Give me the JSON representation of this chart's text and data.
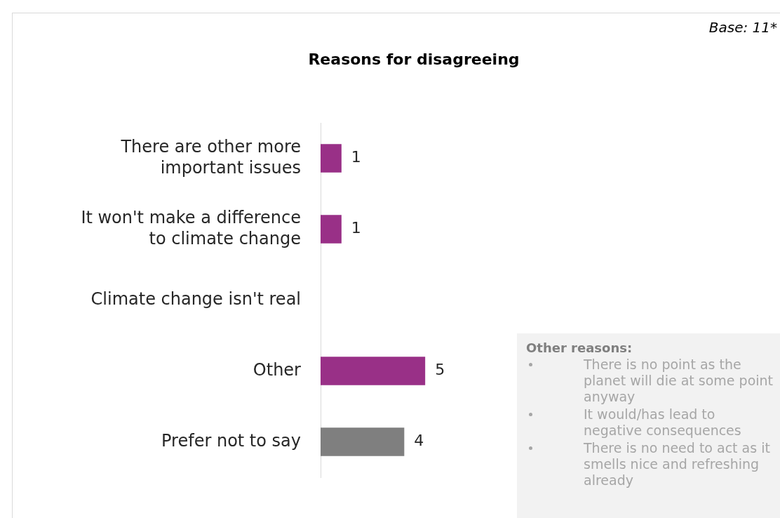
{
  "chart_data": {
    "type": "bar",
    "orientation": "horizontal",
    "title": "Reasons for disagreeing",
    "categories": [
      "There are other more important issues",
      "It won't make a difference to climate change",
      "Climate change isn't real",
      "Other",
      "Prefer not to say"
    ],
    "values": [
      1,
      1,
      0,
      5,
      4
    ],
    "value_labels": [
      "1",
      "1",
      null,
      "5",
      "4"
    ],
    "colors": [
      "#993087",
      "#993087",
      "#993087",
      "#993087",
      "#7f7f7f"
    ],
    "legend": false,
    "annotations": [
      "Base: 11*",
      "Other reasons:",
      "There is no point as the planet will die at some point anyway",
      "It would/has lead to negative consequences",
      "There is no need to act as it smells nice and refreshing already"
    ]
  }
}
